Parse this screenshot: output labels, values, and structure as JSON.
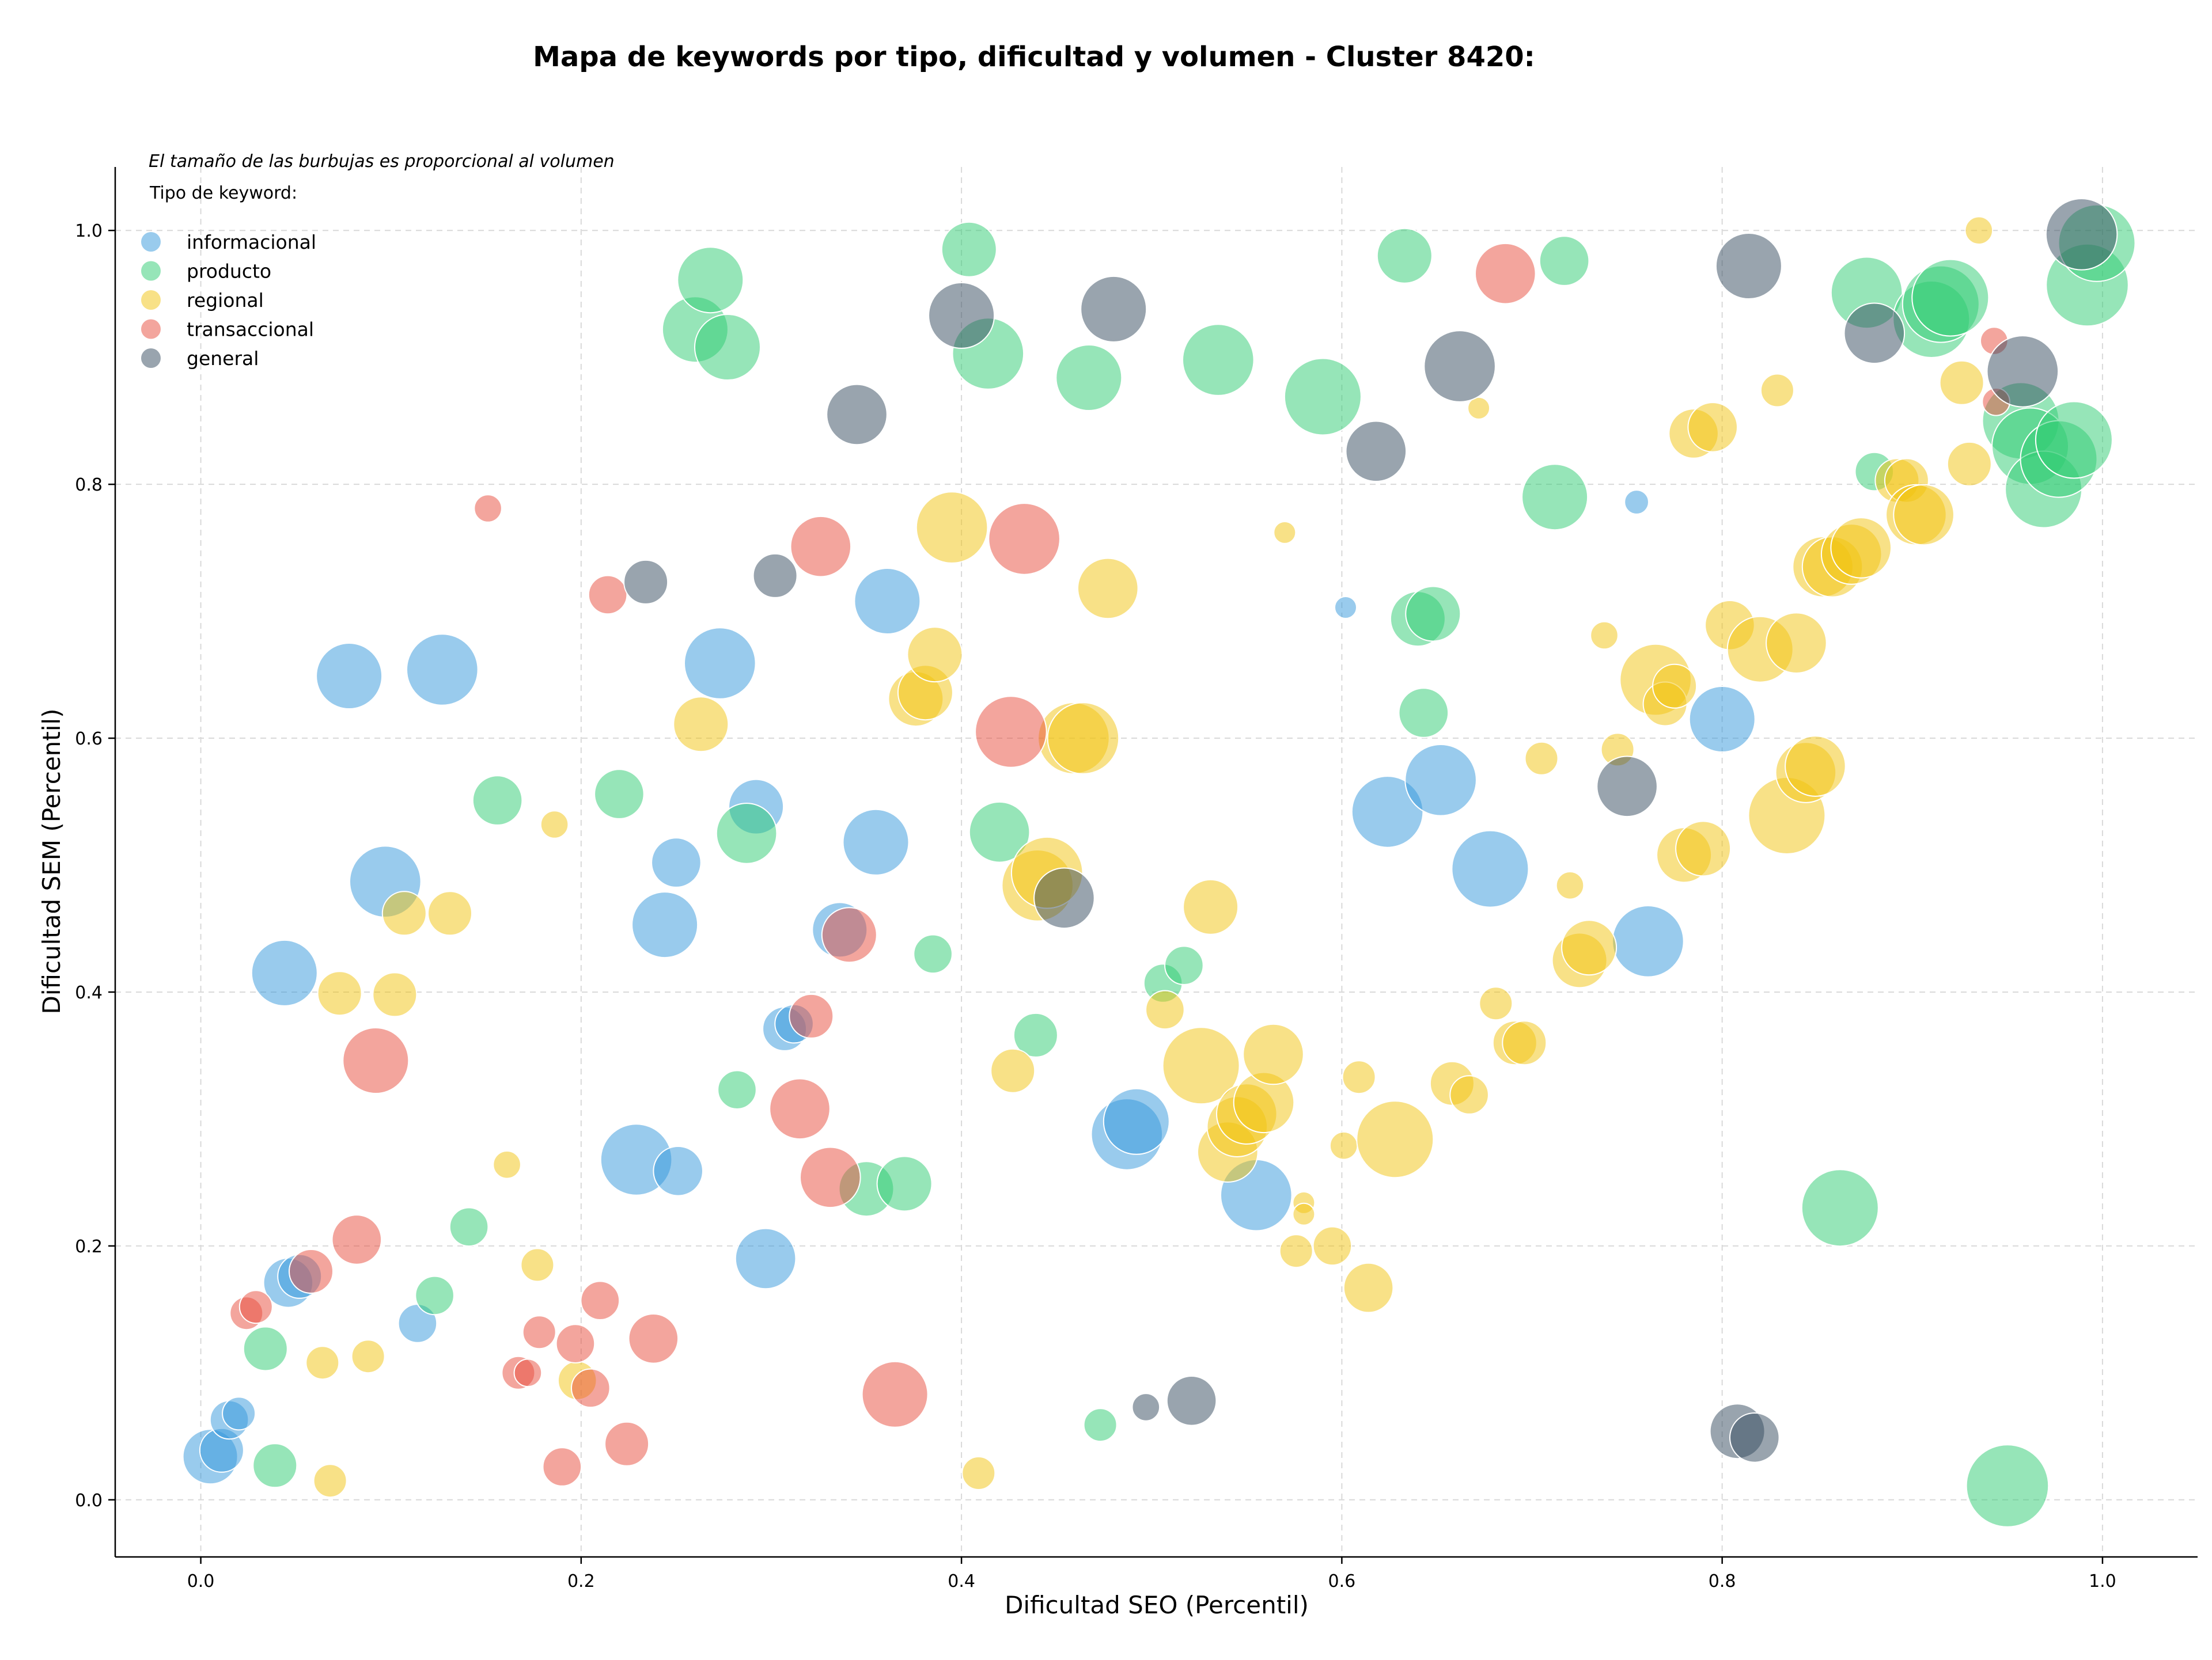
{
  "chart_data": {
    "type": "scatter",
    "title": "Mapa de keywords por tipo, dificultad y volumen - Cluster 8420:",
    "xlabel": "Dificultad SEO (Percentil)",
    "ylabel": "Dificultad SEM (Percentil)",
    "xlim": [
      -0.045,
      1.05
    ],
    "ylim": [
      -0.045,
      1.05
    ],
    "xticks": [
      "0.0",
      "0.2",
      "0.4",
      "0.6",
      "0.8",
      "1.0"
    ],
    "yticks": [
      "0.0",
      "0.2",
      "0.4",
      "0.6",
      "0.8",
      "1.0"
    ],
    "grid": true,
    "note": "El tamaño de las burbujas es proporcional al volumen",
    "legend_title": "Tipo de keyword:",
    "legend_position": "top-left",
    "bubble_opacity": 0.5,
    "series": [
      {
        "name": "informacional",
        "color": "#3498db",
        "points": [
          [
            0.005,
            0.034,
            5
          ],
          [
            0.011,
            0.039,
            4
          ],
          [
            0.015,
            0.063,
            3.5
          ],
          [
            0.02,
            0.068,
            3
          ],
          [
            0.046,
            0.171,
            4.5
          ],
          [
            0.052,
            0.176,
            4
          ],
          [
            0.044,
            0.415,
            6
          ],
          [
            0.078,
            0.649,
            6
          ],
          [
            0.097,
            0.487,
            6.5
          ],
          [
            0.127,
            0.654,
            6.5
          ],
          [
            0.114,
            0.139,
            3.5
          ],
          [
            0.229,
            0.268,
            6.5
          ],
          [
            0.251,
            0.259,
            4.5
          ],
          [
            0.244,
            0.453,
            6
          ],
          [
            0.25,
            0.502,
            4.5
          ],
          [
            0.273,
            0.659,
            6.5
          ],
          [
            0.292,
            0.546,
            5
          ],
          [
            0.297,
            0.19,
            5.5
          ],
          [
            0.307,
            0.371,
            4
          ],
          [
            0.312,
            0.375,
            3.5
          ],
          [
            0.336,
            0.449,
            5
          ],
          [
            0.355,
            0.518,
            6
          ],
          [
            0.361,
            0.708,
            6
          ],
          [
            0.487,
            0.288,
            6.5
          ],
          [
            0.492,
            0.298,
            6
          ],
          [
            0.555,
            0.24,
            6.5
          ],
          [
            0.602,
            0.703,
            2
          ],
          [
            0.624,
            0.542,
            6.5
          ],
          [
            0.652,
            0.567,
            6.5
          ],
          [
            0.678,
            0.497,
            7
          ],
          [
            0.755,
            0.786,
            2.2
          ],
          [
            0.761,
            0.44,
            6.5
          ],
          [
            0.8,
            0.615,
            6
          ]
        ]
      },
      {
        "name": "producto",
        "color": "#2ecc71",
        "points": [
          [
            0.034,
            0.119,
            4
          ],
          [
            0.039,
            0.027,
            4
          ],
          [
            0.123,
            0.161,
            3.5
          ],
          [
            0.141,
            0.215,
            3.5
          ],
          [
            0.156,
            0.551,
            4.5
          ],
          [
            0.22,
            0.556,
            4.5
          ],
          [
            0.26,
            0.922,
            6
          ],
          [
            0.268,
            0.961,
            6
          ],
          [
            0.277,
            0.908,
            6
          ],
          [
            0.282,
            0.323,
            3.5
          ],
          [
            0.287,
            0.525,
            5.5
          ],
          [
            0.35,
            0.245,
            5
          ],
          [
            0.37,
            0.249,
            5
          ],
          [
            0.385,
            0.43,
            3.5
          ],
          [
            0.404,
            0.985,
            5
          ],
          [
            0.414,
            0.903,
            6.5
          ],
          [
            0.42,
            0.526,
            5.5
          ],
          [
            0.439,
            0.366,
            4
          ],
          [
            0.473,
            0.059,
            3
          ],
          [
            0.467,
            0.884,
            6
          ],
          [
            0.506,
            0.407,
            3.5
          ],
          [
            0.517,
            0.421,
            3.5
          ],
          [
            0.535,
            0.898,
            6.5
          ],
          [
            0.59,
            0.869,
            7
          ],
          [
            0.633,
            0.98,
            5
          ],
          [
            0.64,
            0.694,
            5
          ],
          [
            0.648,
            0.698,
            5
          ],
          [
            0.643,
            0.62,
            4.5
          ],
          [
            0.712,
            0.79,
            6
          ],
          [
            0.717,
            0.976,
            4.5
          ],
          [
            0.862,
            0.23,
            7
          ],
          [
            0.88,
            0.81,
            3.5
          ],
          [
            0.876,
            0.951,
            6.5
          ],
          [
            0.91,
            0.93,
            7
          ],
          [
            0.915,
            0.942,
            7
          ],
          [
            0.92,
            0.947,
            7
          ],
          [
            0.95,
            0.011,
            7.5
          ],
          [
            0.957,
            0.85,
            7
          ],
          [
            0.962,
            0.83,
            7
          ],
          [
            0.969,
            0.796,
            7
          ],
          [
            0.977,
            0.82,
            7
          ],
          [
            0.985,
            0.835,
            7
          ],
          [
            0.992,
            0.957,
            7.5
          ],
          [
            0.997,
            0.99,
            7
          ]
        ]
      },
      {
        "name": "regional",
        "color": "#f1c40f",
        "points": [
          [
            0.064,
            0.108,
            3
          ],
          [
            0.068,
            0.015,
            3
          ],
          [
            0.073,
            0.399,
            4
          ],
          [
            0.088,
            0.113,
            3
          ],
          [
            0.102,
            0.398,
            4
          ],
          [
            0.107,
            0.462,
            4
          ],
          [
            0.131,
            0.462,
            4
          ],
          [
            0.161,
            0.264,
            2.5
          ],
          [
            0.177,
            0.185,
            3
          ],
          [
            0.186,
            0.532,
            2.5
          ],
          [
            0.198,
            0.094,
            3.5
          ],
          [
            0.263,
            0.611,
            5
          ],
          [
            0.376,
            0.631,
            5
          ],
          [
            0.381,
            0.636,
            5
          ],
          [
            0.386,
            0.666,
            5
          ],
          [
            0.395,
            0.766,
            6.5
          ],
          [
            0.409,
            0.021,
            3
          ],
          [
            0.427,
            0.338,
            4
          ],
          [
            0.44,
            0.484,
            6.5
          ],
          [
            0.445,
            0.494,
            6.5
          ],
          [
            0.459,
            0.6,
            6.5
          ],
          [
            0.464,
            0.6,
            6.5
          ],
          [
            0.477,
            0.718,
            5.5
          ],
          [
            0.507,
            0.386,
            3.5
          ],
          [
            0.531,
            0.467,
            5
          ],
          [
            0.526,
            0.342,
            7
          ],
          [
            0.54,
            0.274,
            5.5
          ],
          [
            0.545,
            0.294,
            5.5
          ],
          [
            0.55,
            0.304,
            5.5
          ],
          [
            0.559,
            0.313,
            5.5
          ],
          [
            0.564,
            0.351,
            5.5
          ],
          [
            0.57,
            0.762,
            2
          ],
          [
            0.576,
            0.196,
            3
          ],
          [
            0.58,
            0.234,
            2
          ],
          [
            0.58,
            0.225,
            2
          ],
          [
            0.595,
            0.2,
            3.5
          ],
          [
            0.601,
            0.279,
            2.5
          ],
          [
            0.609,
            0.333,
            3
          ],
          [
            0.614,
            0.167,
            4.5
          ],
          [
            0.628,
            0.284,
            7
          ],
          [
            0.658,
            0.328,
            4
          ],
          [
            0.667,
            0.319,
            3.5
          ],
          [
            0.672,
            0.86,
            2
          ],
          [
            0.681,
            0.391,
            3
          ],
          [
            0.691,
            0.36,
            4
          ],
          [
            0.696,
            0.36,
            4
          ],
          [
            0.705,
            0.584,
            3
          ],
          [
            0.72,
            0.484,
            2.5
          ],
          [
            0.725,
            0.425,
            5
          ],
          [
            0.73,
            0.435,
            5
          ],
          [
            0.738,
            0.681,
            2.5
          ],
          [
            0.745,
            0.591,
            3
          ],
          [
            0.765,
            0.646,
            6.5
          ],
          [
            0.77,
            0.627,
            4
          ],
          [
            0.775,
            0.641,
            4
          ],
          [
            0.78,
            0.508,
            5
          ],
          [
            0.785,
            0.84,
            4.5
          ],
          [
            0.79,
            0.513,
            5
          ],
          [
            0.795,
            0.845,
            4.5
          ],
          [
            0.804,
            0.689,
            4.5
          ],
          [
            0.82,
            0.67,
            6
          ],
          [
            0.829,
            0.874,
            3
          ],
          [
            0.834,
            0.539,
            7
          ],
          [
            0.839,
            0.675,
            5.5
          ],
          [
            0.844,
            0.573,
            5.5
          ],
          [
            0.849,
            0.578,
            5.5
          ],
          [
            0.853,
            0.735,
            5.5
          ],
          [
            0.858,
            0.735,
            5.5
          ],
          [
            0.868,
            0.745,
            5.5
          ],
          [
            0.873,
            0.75,
            5.5
          ],
          [
            0.892,
            0.803,
            4
          ],
          [
            0.897,
            0.803,
            4
          ],
          [
            0.902,
            0.776,
            5.5
          ],
          [
            0.906,
            0.776,
            5.5
          ],
          [
            0.926,
            0.88,
            4
          ],
          [
            0.93,
            0.816,
            4
          ],
          [
            0.935,
            1.0,
            2.5
          ]
        ]
      },
      {
        "name": "transaccional",
        "color": "#e74c3c",
        "points": [
          [
            0.024,
            0.147,
            3
          ],
          [
            0.029,
            0.152,
            3
          ],
          [
            0.058,
            0.18,
            4
          ],
          [
            0.082,
            0.205,
            4.5
          ],
          [
            0.092,
            0.346,
            6
          ],
          [
            0.151,
            0.781,
            2.5
          ],
          [
            0.167,
            0.1,
            3
          ],
          [
            0.172,
            0.1,
            2.5
          ],
          [
            0.178,
            0.132,
            3
          ],
          [
            0.197,
            0.123,
            3.5
          ],
          [
            0.205,
            0.088,
            3.5
          ],
          [
            0.19,
            0.026,
            3.5
          ],
          [
            0.21,
            0.157,
            3.5
          ],
          [
            0.214,
            0.713,
            3.5
          ],
          [
            0.224,
            0.044,
            4
          ],
          [
            0.238,
            0.127,
            4.5
          ],
          [
            0.315,
            0.308,
            5.5
          ],
          [
            0.321,
            0.381,
            4
          ],
          [
            0.326,
            0.751,
            5.5
          ],
          [
            0.331,
            0.254,
            5.5
          ],
          [
            0.341,
            0.445,
            5
          ],
          [
            0.365,
            0.083,
            6
          ],
          [
            0.426,
            0.605,
            6.5
          ],
          [
            0.433,
            0.757,
            6.5
          ],
          [
            0.686,
            0.966,
            5.5
          ],
          [
            0.943,
            0.913,
            2.5
          ],
          [
            0.944,
            0.865,
            2.5
          ]
        ]
      },
      {
        "name": "general",
        "color": "#34495e",
        "points": [
          [
            0.234,
            0.723,
            4
          ],
          [
            0.302,
            0.728,
            4
          ],
          [
            0.345,
            0.855,
            5.5
          ],
          [
            0.4,
            0.933,
            6
          ],
          [
            0.454,
            0.474,
            5.5
          ],
          [
            0.48,
            0.938,
            6
          ],
          [
            0.497,
            0.073,
            2.5
          ],
          [
            0.521,
            0.078,
            4.5
          ],
          [
            0.618,
            0.826,
            5.5
          ],
          [
            0.662,
            0.893,
            6.5
          ],
          [
            0.75,
            0.562,
            5.5
          ],
          [
            0.808,
            0.054,
            5
          ],
          [
            0.817,
            0.049,
            4.5
          ],
          [
            0.814,
            0.972,
            6
          ],
          [
            0.88,
            0.919,
            5.5
          ],
          [
            0.958,
            0.889,
            6.5
          ],
          [
            0.989,
            0.997,
            6.5
          ]
        ]
      }
    ]
  }
}
